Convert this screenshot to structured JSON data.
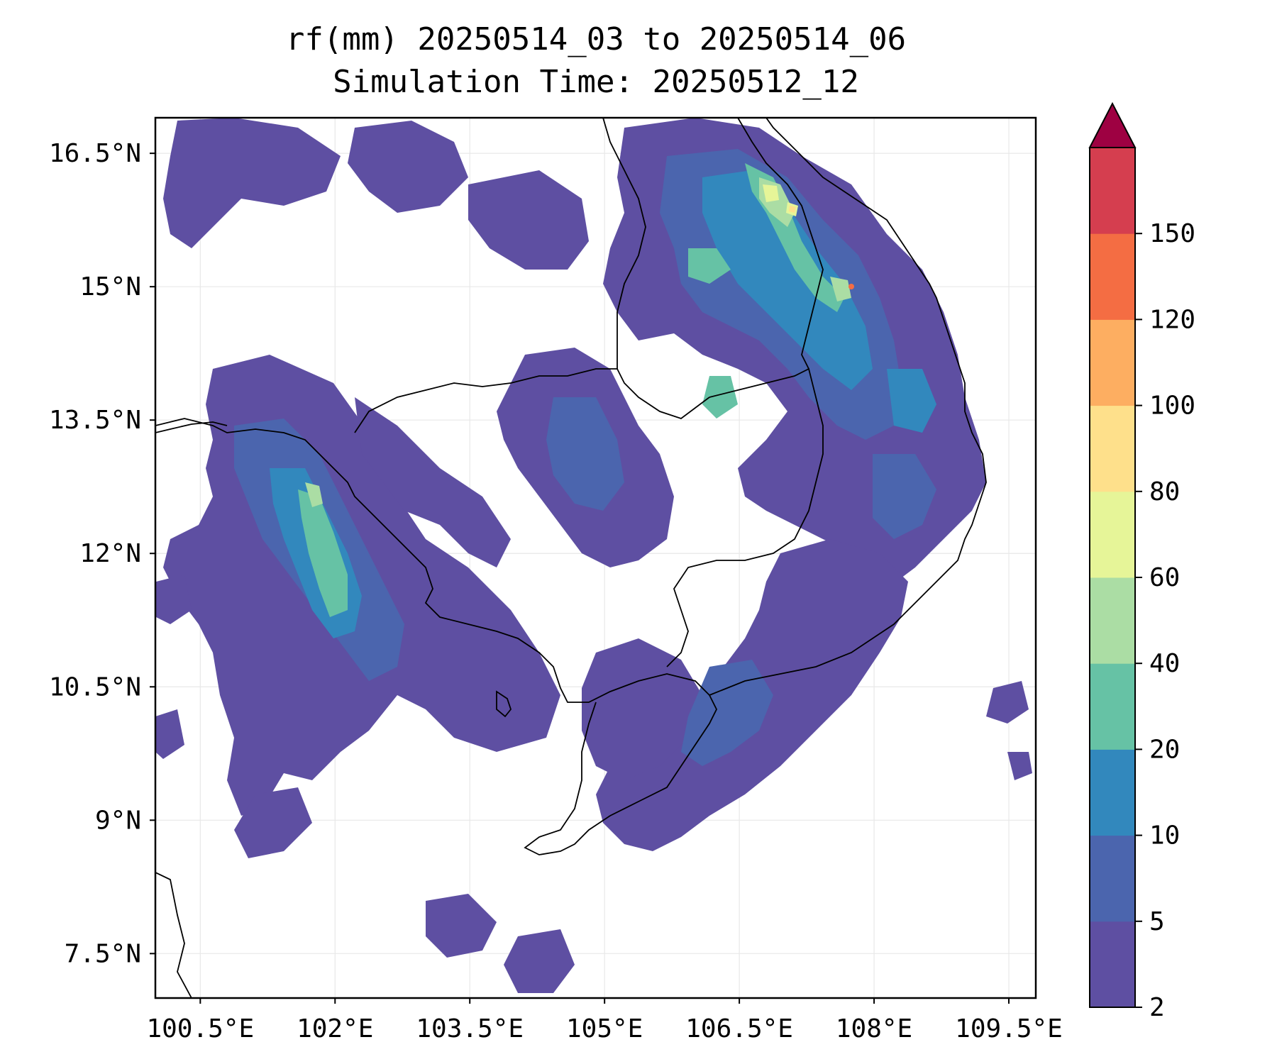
{
  "title": {
    "line1": "rf(mm) 20250514_03 to 20250514_06",
    "line2": "Simulation Time: 20250512_12"
  },
  "map": {
    "lon_range": [
      100.0,
      109.8
    ],
    "lat_range": [
      7.0,
      16.9
    ],
    "lon_ticks": [
      {
        "value": 100.5,
        "label": "100.5°E"
      },
      {
        "value": 102.0,
        "label": "102°E"
      },
      {
        "value": 103.5,
        "label": "103.5°E"
      },
      {
        "value": 105.0,
        "label": "105°E"
      },
      {
        "value": 106.5,
        "label": "106.5°E"
      },
      {
        "value": 108.0,
        "label": "108°E"
      },
      {
        "value": 109.5,
        "label": "109.5°E"
      }
    ],
    "lat_ticks": [
      {
        "value": 16.5,
        "label": "16.5°N"
      },
      {
        "value": 15.0,
        "label": "15°N"
      },
      {
        "value": 13.5,
        "label": "13.5°N"
      },
      {
        "value": 12.0,
        "label": "12°N"
      },
      {
        "value": 10.5,
        "label": "10.5°N"
      },
      {
        "value": 9.0,
        "label": "9°N"
      },
      {
        "value": 7.5,
        "label": "7.5°N"
      }
    ],
    "grid": true
  },
  "colorbar": {
    "levels": [
      "2",
      "5",
      "10",
      "20",
      "40",
      "60",
      "80",
      "100",
      "120",
      "150"
    ],
    "colors": [
      "#5e4fa2",
      "#4b65ae",
      "#3288bd",
      "#66c2a5",
      "#abdda4",
      "#e6f598",
      "#fee08b",
      "#fdae61",
      "#f46d43",
      "#d53e4f"
    ],
    "extend_color": "#9e0142",
    "extend": "max"
  },
  "rain_areas": [
    {
      "level": 0,
      "color": "#5e4fa2",
      "area": "Gulf of Thailand to western Cambodia coast band"
    },
    {
      "level": 0,
      "color": "#5e4fa2",
      "area": "Central Vietnam highlands and coast"
    },
    {
      "level": 0,
      "color": "#5e4fa2",
      "area": "Southern Laos and northeastern Cambodia"
    },
    {
      "level": 0,
      "color": "#5e4fa2",
      "area": "Mekong Delta and southern Vietnam coast"
    },
    {
      "level": 0,
      "color": "#5e4fa2",
      "area": "Northwest Thailand / Laos scattered cells"
    },
    {
      "level": 2,
      "color": "#3288bd",
      "area": "Gulf coast band core"
    },
    {
      "level": 2,
      "color": "#3288bd",
      "area": "Central Vietnam core"
    },
    {
      "level": 3,
      "color": "#66c2a5",
      "area": "Gulf coast band maxima"
    },
    {
      "level": 3,
      "color": "#66c2a5",
      "area": "Central Vietnam maxima"
    },
    {
      "level": 5,
      "color": "#e6f598",
      "area": "Central Vietnam peak"
    },
    {
      "level": 8,
      "color": "#f46d43",
      "area": "Central Vietnam peak point"
    }
  ]
}
